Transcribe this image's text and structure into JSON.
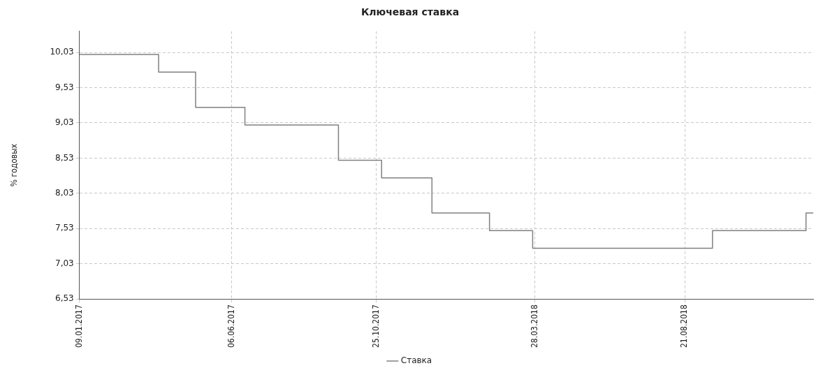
{
  "chart_data": {
    "type": "step",
    "title": "Ключевая ставка",
    "ylabel": "% годовых",
    "series": [
      {
        "name": "Ставка",
        "color": "#808080",
        "x": [
          "2017-01-09",
          "2017-03-27",
          "2017-05-02",
          "2017-06-19",
          "2017-09-18",
          "2017-10-30",
          "2017-12-18",
          "2018-02-12",
          "2018-03-26",
          "2018-09-17",
          "2018-12-17",
          "2018-12-24"
        ],
        "values": [
          10.0,
          9.75,
          9.25,
          9.0,
          8.5,
          8.25,
          7.75,
          7.5,
          7.25,
          7.5,
          7.75,
          7.75
        ]
      }
    ],
    "xlim": [
      "2017-01-09",
      "2018-12-24"
    ],
    "xticks": [
      {
        "value": "2017-01-09",
        "label": "09.01.2017"
      },
      {
        "value": "2017-06-06",
        "label": "06.06.2017"
      },
      {
        "value": "2017-10-25",
        "label": "25.10.2017"
      },
      {
        "value": "2018-03-28",
        "label": "28.03.2018"
      },
      {
        "value": "2018-08-21",
        "label": "21.08.2018"
      }
    ],
    "ylim": [
      6.53,
      10.33
    ],
    "yticks": [
      {
        "value": 6.53,
        "label": "6,53"
      },
      {
        "value": 7.03,
        "label": "7,03"
      },
      {
        "value": 7.53,
        "label": "7,53"
      },
      {
        "value": 8.03,
        "label": "8,03"
      },
      {
        "value": 8.53,
        "label": "8,53"
      },
      {
        "value": 9.03,
        "label": "9,03"
      },
      {
        "value": 9.53,
        "label": "9,53"
      },
      {
        "value": 10.03,
        "label": "10,03"
      }
    ],
    "grid": true,
    "legend": "bottom",
    "marker": "none",
    "line_style": "solid"
  }
}
